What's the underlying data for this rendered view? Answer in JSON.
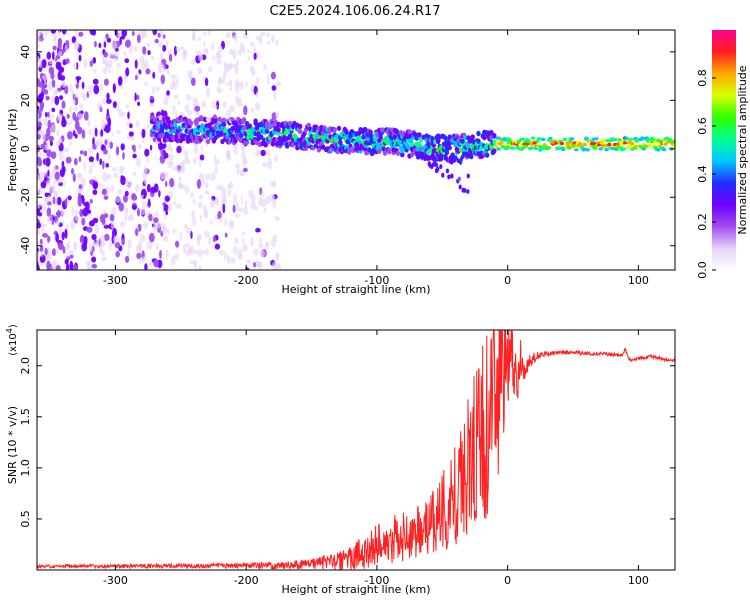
{
  "figure_title": "C2E5.2024.106.06.24.R17",
  "chart_data": [
    {
      "type": "heatmap",
      "name": "spectrogram",
      "xlabel": "Height of straight line (km)",
      "ylabel": "Frequency (Hz)",
      "xlim": [
        -360,
        128
      ],
      "ylim": [
        -50,
        49
      ],
      "xticks": [
        -300,
        -200,
        -100,
        0,
        100
      ],
      "yticks": [
        -40,
        -20,
        0,
        20,
        40
      ],
      "colorbar": {
        "label": "Normalized spectral amplitude",
        "range": [
          0,
          1
        ],
        "ticks": [
          "0.0",
          "0.2",
          "0.4",
          "0.6",
          "0.8"
        ],
        "colors": [
          "#ffffff",
          "#e6d2f8",
          "#a04cf0",
          "#7000ff",
          "#2030ff",
          "#00c8ff",
          "#00ff90",
          "#30ff00",
          "#d8ff00",
          "#ffaa00",
          "#ff2020",
          "#ff0090"
        ]
      },
      "ridge": {
        "x": [
          -270,
          -240,
          -200,
          -170,
          -140,
          -110,
          -90,
          -75,
          -60,
          -45,
          -30,
          -15,
          0,
          50,
          90,
          128
        ],
        "freq": [
          8,
          8,
          7,
          6,
          4,
          3,
          3,
          2,
          1,
          0,
          1,
          2,
          2,
          2,
          2,
          2
        ]
      }
    },
    {
      "type": "line",
      "name": "snr",
      "xlabel": "Height of straight line (km)",
      "ylabel": "SNR (10 * v/v)",
      "multiplier": "(x10",
      "multiplier_exp": "4",
      "multiplier_close": ")",
      "xlim": [
        -360,
        128
      ],
      "ylim": [
        0,
        23500
      ],
      "xticks": [
        -300,
        -200,
        -100,
        0,
        100
      ],
      "yticks": [
        5000,
        10000,
        15000,
        20000
      ],
      "ytick_labels": [
        "0.5",
        "1.0",
        "1.5",
        "2.0"
      ],
      "color": "#ff2020",
      "series": {
        "x": [
          -360,
          -300,
          -250,
          -200,
          -170,
          -150,
          -130,
          -120,
          -110,
          -100,
          -90,
          -80,
          -70,
          -60,
          -50,
          -40,
          -35,
          -30,
          -25,
          -20,
          -15,
          -12,
          -10,
          -8,
          -5,
          -2,
          0,
          2,
          5,
          8,
          10,
          15,
          20,
          25,
          30,
          40,
          50,
          60,
          70,
          80,
          88,
          90,
          92,
          95,
          100,
          110,
          115,
          120,
          128
        ],
        "y": [
          350,
          380,
          400,
          430,
          450,
          600,
          800,
          1200,
          1700,
          2300,
          3000,
          3300,
          3600,
          4200,
          5500,
          7200,
          9000,
          10500,
          12000,
          13500,
          14500,
          15500,
          16500,
          17200,
          18000,
          18600,
          19000,
          19300,
          19600,
          19900,
          20200,
          20500,
          20800,
          21000,
          21200,
          21300,
          21300,
          21200,
          21200,
          21100,
          21000,
          21800,
          20700,
          20600,
          20700,
          20900,
          20800,
          20600,
          20500
        ]
      },
      "noise_amplitude": {
        "x": [
          -360,
          -200,
          -150,
          -120,
          -100,
          -80,
          -60,
          -40,
          -25,
          -15,
          -8,
          0,
          5,
          10,
          15,
          20,
          30,
          128
        ],
        "amp": [
          150,
          250,
          500,
          1200,
          2200,
          2500,
          3000,
          5000,
          8000,
          10000,
          9000,
          6000,
          4000,
          2500,
          1200,
          500,
          200,
          150
        ]
      }
    }
  ]
}
